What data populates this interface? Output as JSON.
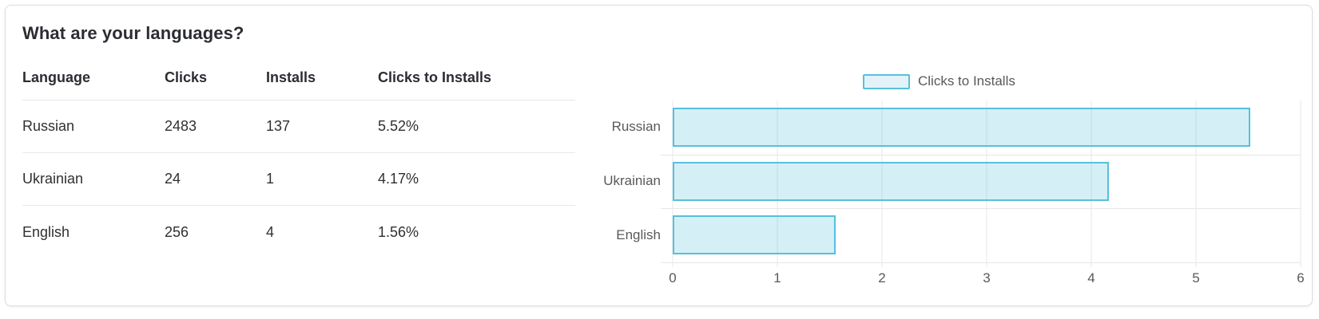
{
  "card": {
    "title": "What are your languages?"
  },
  "table": {
    "headers": [
      "Language",
      "Clicks",
      "Installs",
      "Clicks to Installs"
    ],
    "rows": [
      {
        "language": "Russian",
        "clicks": "2483",
        "installs": "137",
        "ratio": "5.52%"
      },
      {
        "language": "Ukrainian",
        "clicks": "24",
        "installs": "1",
        "ratio": "4.17%"
      },
      {
        "language": "English",
        "clicks": "256",
        "installs": "4",
        "ratio": "1.56%"
      }
    ]
  },
  "chart_data": {
    "type": "bar",
    "orientation": "horizontal",
    "title": "",
    "categories": [
      "Russian",
      "Ukrainian",
      "English"
    ],
    "series": [
      {
        "name": "Clicks to Installs",
        "values": [
          5.52,
          4.17,
          1.56
        ]
      }
    ],
    "xlabel": "",
    "ylabel": "",
    "xlim": [
      0,
      6
    ],
    "x_ticks": [
      "0",
      "1",
      "2",
      "3",
      "4",
      "5",
      "6"
    ],
    "grid": true,
    "legend": {
      "label": "Clicks to Installs",
      "position": "top"
    },
    "colors": {
      "bar_fill": "#ddeff6",
      "bar_border": "#57c0dc",
      "gridline": "#e7e7e7",
      "axis_text": "#58595b",
      "table_text": "#2f3033"
    }
  }
}
